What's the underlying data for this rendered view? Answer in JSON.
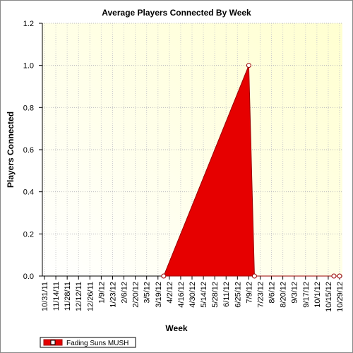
{
  "chart_data": {
    "type": "area",
    "title": "Average Players Connected By Week",
    "x_label": "Week",
    "y_label": "Players Connected",
    "categories": [
      "10/31/11",
      "11/14/11",
      "11/28/11",
      "12/12/11",
      "12/26/11",
      "1/9/12",
      "1/23/12",
      "2/6/12",
      "2/20/12",
      "3/5/12",
      "3/19/12",
      "4/2/12",
      "4/16/12",
      "4/30/12",
      "5/14/12",
      "5/28/12",
      "6/11/12",
      "6/25/12",
      "7/9/12",
      "7/23/12",
      "8/6/12",
      "8/20/12",
      "9/3/12",
      "9/17/12",
      "10/1/12",
      "10/15/12",
      "10/29/12"
    ],
    "x": [
      "3/26/12",
      "7/9/12",
      "7/16/12",
      "10/22/12",
      "10/29/12"
    ],
    "series": [
      {
        "name": "Fading Suns MUSH",
        "color": "#e60000",
        "values": [
          0,
          1,
          0,
          0,
          0
        ]
      }
    ],
    "ylim": [
      0,
      1.2
    ],
    "yticks": [
      {
        "value": 0,
        "label": "0.0"
      },
      0.2,
      0.4,
      0.6,
      0.8,
      {
        "value": 1,
        "label": "1.0"
      },
      1.2
    ],
    "grid": true,
    "legend": "bottom-left"
  }
}
